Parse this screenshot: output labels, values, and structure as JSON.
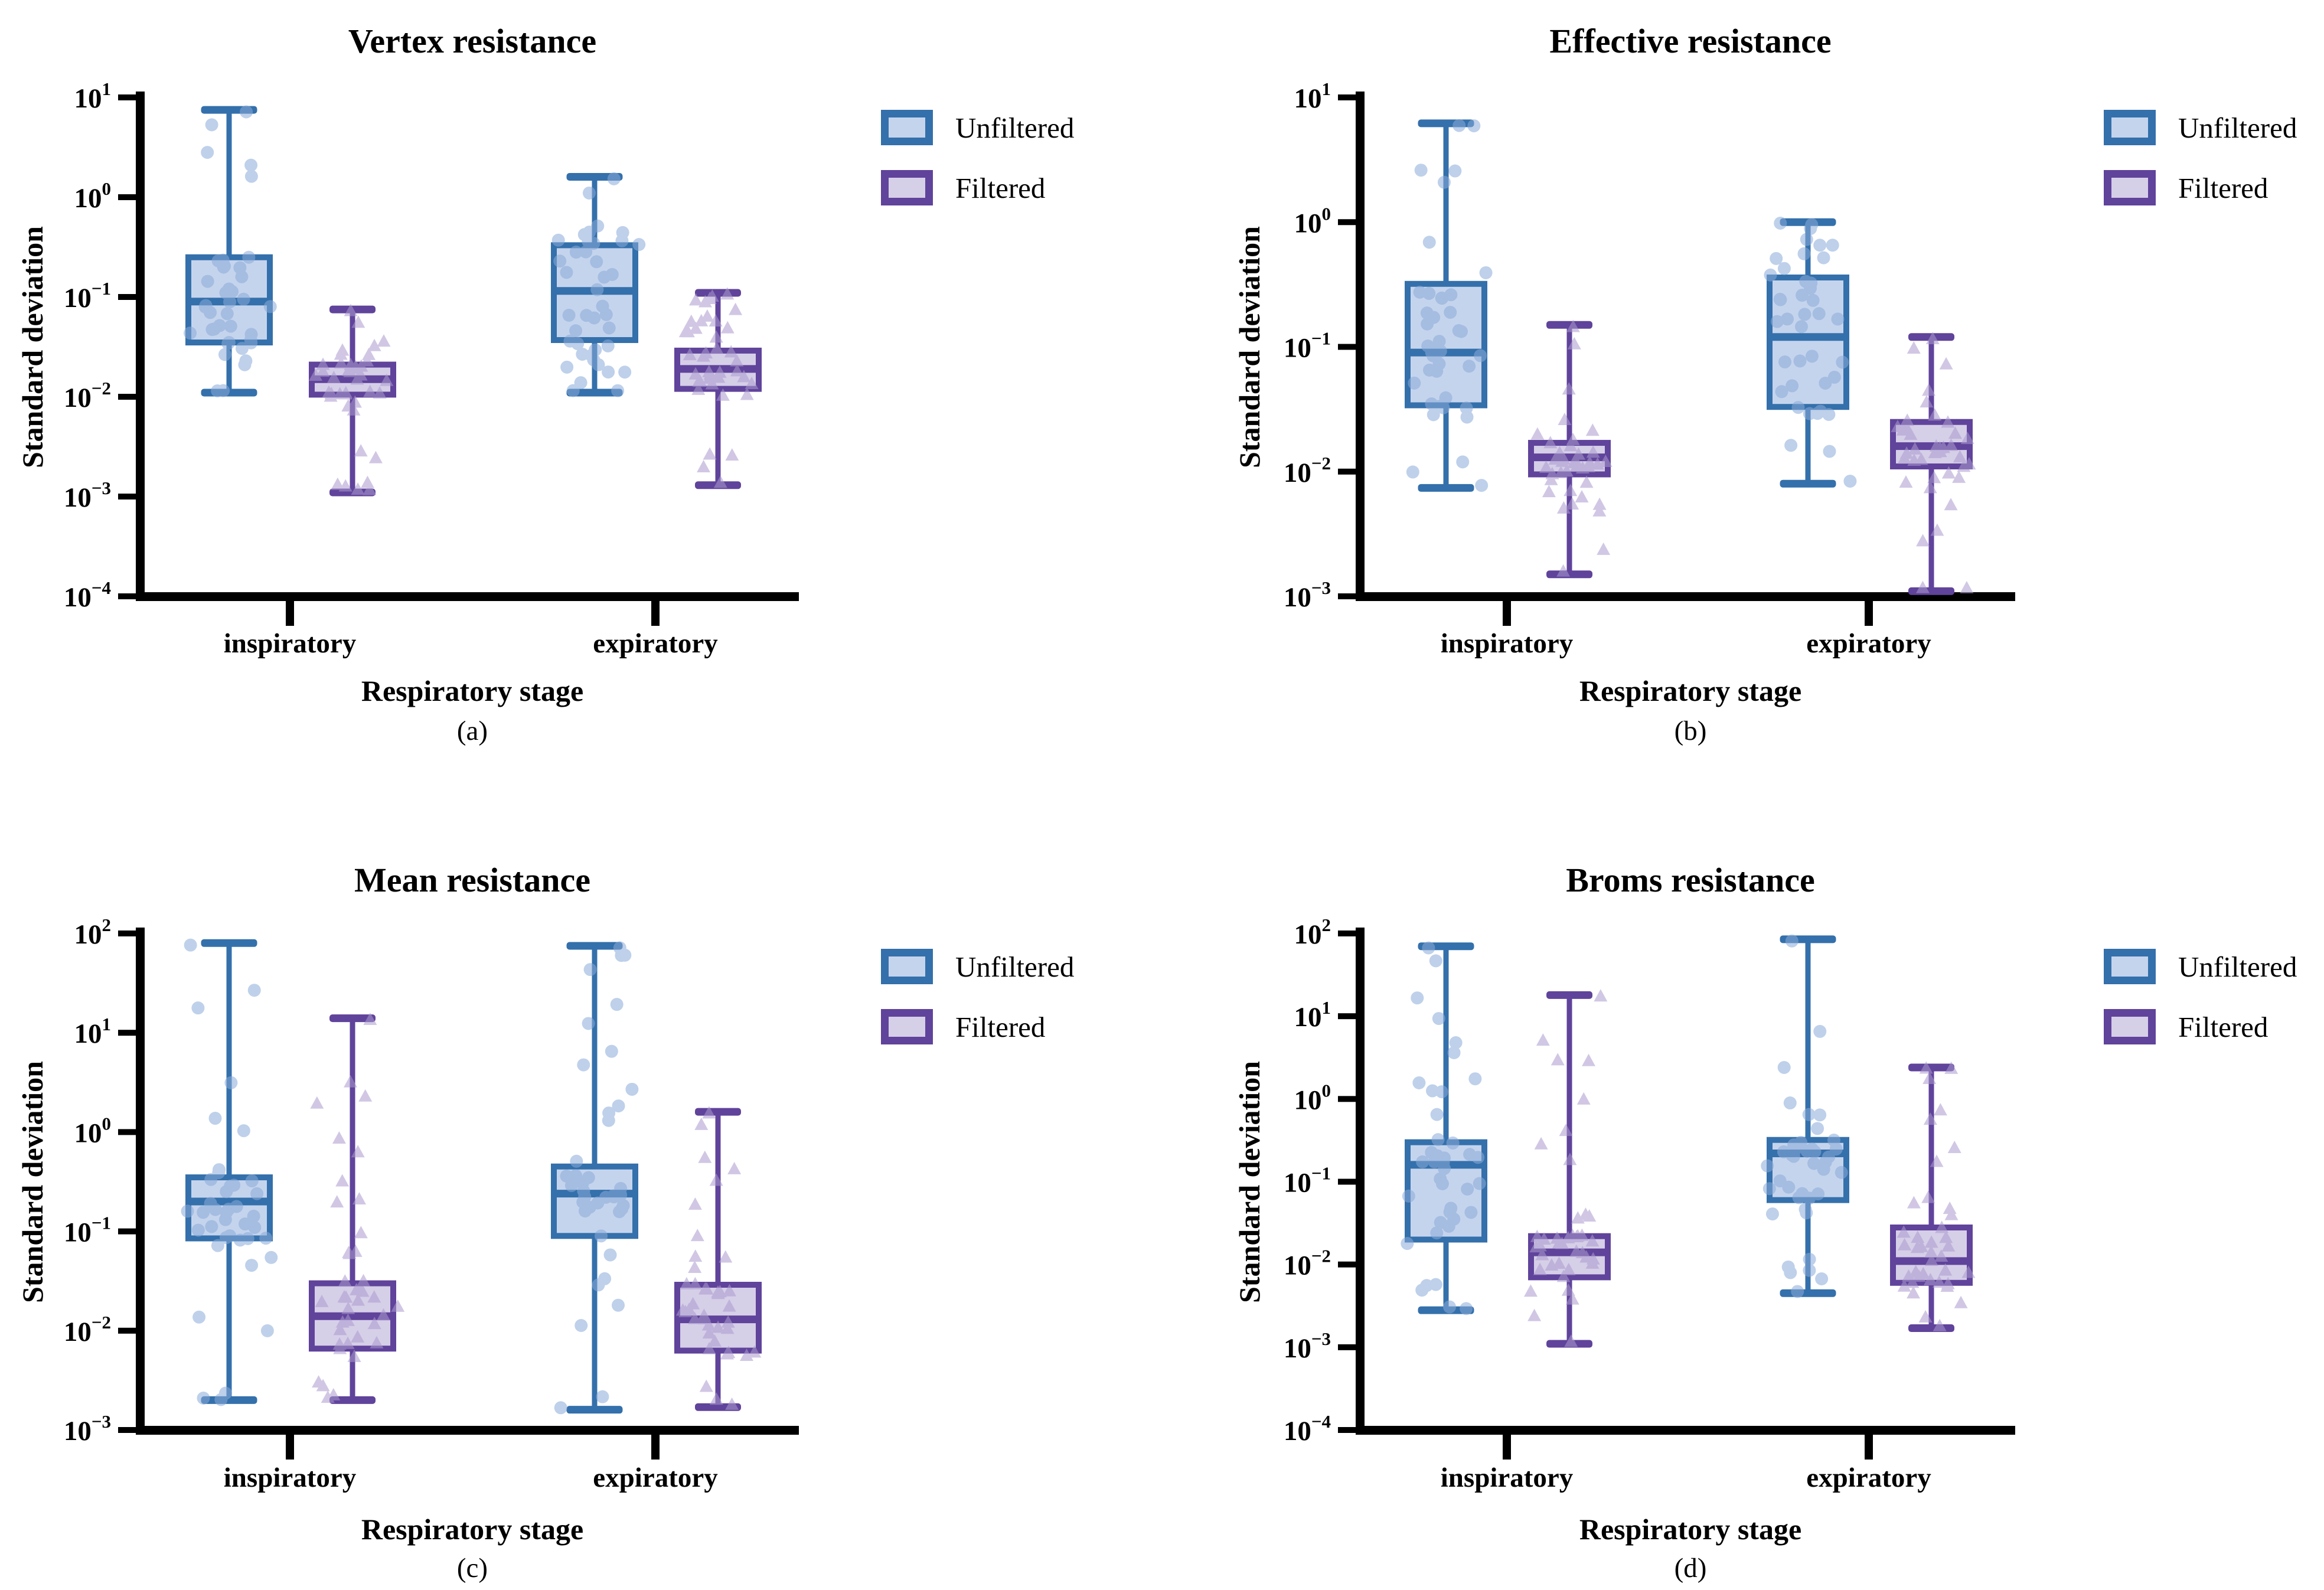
{
  "legend": {
    "unfiltered": "Unfiltered",
    "filtered": "Filtered"
  },
  "colors": {
    "background": "#FFFFFF",
    "text": "#000000",
    "axis": "#000000",
    "unfiltered_stroke": "#3470AB",
    "unfiltered_fill": "#C5D4ED",
    "unfiltered_point": "#8AABD9",
    "filtered_stroke": "#60439B",
    "filtered_fill": "#D6CFE8",
    "filtered_point": "#AC9BCF"
  },
  "chart_data": [
    {
      "type": "box",
      "panel": "a",
      "title": "Vertex resistance",
      "caption": "(a)",
      "xlabel": "Respiratory stage",
      "ylabel": "Standard deviation",
      "yscale": "log",
      "ylim": [
        0.0001,
        10
      ],
      "ytick_exponents": [
        1,
        0,
        -1,
        -2,
        -3,
        -4
      ],
      "categories": [
        "inspiratory",
        "expiratory"
      ],
      "n_points_per_group": 40,
      "legend_position": "right-top",
      "series": [
        {
          "name": "Unfiltered",
          "boxes": [
            {
              "min": 0.011,
              "q1": 0.035,
              "median": 0.09,
              "q3": 0.25,
              "max": 7.5
            },
            {
              "min": 0.011,
              "q1": 0.037,
              "median": 0.115,
              "q3": 0.33,
              "max": 1.6
            }
          ]
        },
        {
          "name": "Filtered",
          "boxes": [
            {
              "min": 0.0011,
              "q1": 0.0105,
              "median": 0.015,
              "q3": 0.021,
              "max": 0.075
            },
            {
              "min": 0.0013,
              "q1": 0.012,
              "median": 0.019,
              "q3": 0.029,
              "max": 0.11
            }
          ]
        }
      ]
    },
    {
      "type": "box",
      "panel": "b",
      "title": "Effective resistance",
      "caption": "(b)",
      "xlabel": "Respiratory stage",
      "ylabel": "Standard deviation",
      "yscale": "log",
      "ylim": [
        0.001,
        10
      ],
      "ytick_exponents": [
        1,
        0,
        -1,
        -2,
        -3
      ],
      "categories": [
        "inspiratory",
        "expiratory"
      ],
      "n_points_per_group": 40,
      "legend_position": "right-top",
      "series": [
        {
          "name": "Unfiltered",
          "boxes": [
            {
              "min": 0.0074,
              "q1": 0.034,
              "median": 0.09,
              "q3": 0.32,
              "max": 6.2
            },
            {
              "min": 0.008,
              "q1": 0.033,
              "median": 0.12,
              "q3": 0.36,
              "max": 1.0
            }
          ]
        },
        {
          "name": "Filtered",
          "boxes": [
            {
              "min": 0.0015,
              "q1": 0.0095,
              "median": 0.013,
              "q3": 0.017,
              "max": 0.15
            },
            {
              "min": 0.0011,
              "q1": 0.011,
              "median": 0.016,
              "q3": 0.025,
              "max": 0.12
            }
          ]
        }
      ]
    },
    {
      "type": "box",
      "panel": "c",
      "title": "Mean resistance",
      "caption": "(c)",
      "xlabel": "Respiratory stage",
      "ylabel": "Standard deviation",
      "yscale": "log",
      "ylim": [
        0.001,
        100
      ],
      "ytick_exponents": [
        2,
        1,
        0,
        -1,
        -2,
        -3
      ],
      "categories": [
        "inspiratory",
        "expiratory"
      ],
      "n_points_per_group": 40,
      "legend_position": "right-top",
      "series": [
        {
          "name": "Unfiltered",
          "boxes": [
            {
              "min": 0.002,
              "q1": 0.085,
              "median": 0.2,
              "q3": 0.35,
              "max": 80
            },
            {
              "min": 0.0016,
              "q1": 0.09,
              "median": 0.24,
              "q3": 0.45,
              "max": 75
            }
          ]
        },
        {
          "name": "Filtered",
          "boxes": [
            {
              "min": 0.002,
              "q1": 0.0066,
              "median": 0.014,
              "q3": 0.03,
              "max": 14
            },
            {
              "min": 0.0017,
              "q1": 0.0063,
              "median": 0.013,
              "q3": 0.029,
              "max": 1.6
            }
          ]
        }
      ]
    },
    {
      "type": "box",
      "panel": "d",
      "title": "Broms resistance",
      "caption": "(d)",
      "xlabel": "Respiratory stage",
      "ylabel": "Standard deviation",
      "yscale": "log",
      "ylim": [
        0.0001,
        100
      ],
      "ytick_exponents": [
        2,
        1,
        0,
        -1,
        -2,
        -3,
        -4
      ],
      "categories": [
        "inspiratory",
        "expiratory"
      ],
      "n_points_per_group": 40,
      "legend_position": "right-top",
      "series": [
        {
          "name": "Unfiltered",
          "boxes": [
            {
              "min": 0.0028,
              "q1": 0.02,
              "median": 0.16,
              "q3": 0.3,
              "max": 70
            },
            {
              "min": 0.0045,
              "q1": 0.06,
              "median": 0.22,
              "q3": 0.32,
              "max": 85
            }
          ]
        },
        {
          "name": "Filtered",
          "boxes": [
            {
              "min": 0.0011,
              "q1": 0.007,
              "median": 0.014,
              "q3": 0.022,
              "max": 18
            },
            {
              "min": 0.0017,
              "q1": 0.006,
              "median": 0.011,
              "q3": 0.028,
              "max": 2.4
            }
          ]
        }
      ]
    }
  ]
}
